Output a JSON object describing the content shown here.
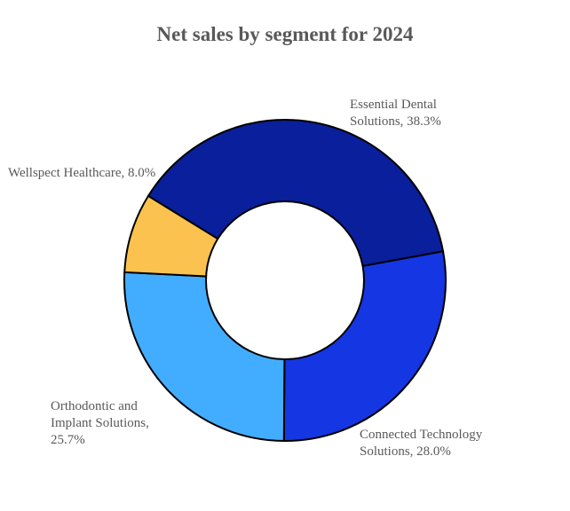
{
  "chart_data": {
    "type": "pie",
    "variant": "donut",
    "title": "Net sales by segment for 2024",
    "start_angle_deg": -58.3,
    "direction": "clockwise",
    "slices": [
      {
        "name": "Essential Dental Solutions",
        "value": 38.3,
        "label_lines": [
          "Essential Dental",
          "Solutions, 38.3%"
        ],
        "color": "#0a1f9b"
      },
      {
        "name": "Connected Technology Solutions",
        "value": 28.0,
        "label_lines": [
          "Connected Technology",
          "Solutions, 28.0%"
        ],
        "color": "#1536e3"
      },
      {
        "name": "Orthodontic and Implant Solutions",
        "value": 25.7,
        "label_lines": [
          "Orthodontic and",
          "Implant Solutions,",
          "25.7%"
        ],
        "color": "#42adff"
      },
      {
        "name": "Wellspect Healthcare",
        "value": 8.0,
        "label_lines": [
          "Wellspect Healthcare, 8.0%"
        ],
        "color": "#fbc250"
      }
    ]
  }
}
